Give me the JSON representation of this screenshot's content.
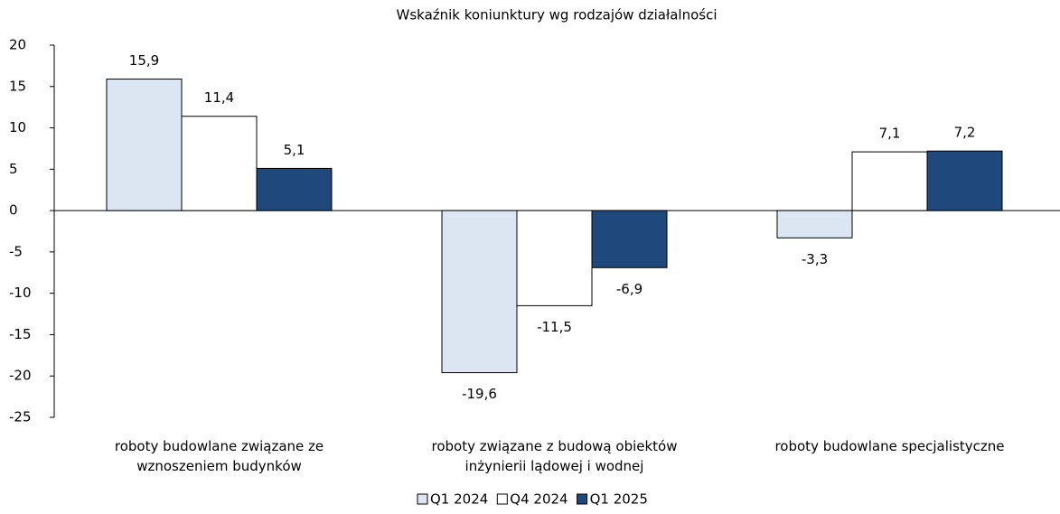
{
  "chart_data": {
    "type": "bar",
    "title": "Wskaźnik koniunktury wg rodzajów działalności",
    "categories": [
      "roboty budowlane związane ze wznoszeniem budynków",
      "roboty związane z budową obiektów inżynierii lądowej i wodnej",
      "roboty budowlane specjalistyczne"
    ],
    "series": [
      {
        "name": "Q1 2024",
        "color": "#dce6f2",
        "values": [
          15.9,
          -19.6,
          -3.3
        ],
        "value_labels": [
          "15,9",
          "-19,6",
          "-3,3"
        ]
      },
      {
        "name": "Q4 2024",
        "color": "#ffffff",
        "values": [
          11.4,
          -11.5,
          7.1
        ],
        "value_labels": [
          "11,4",
          "-11,5",
          "7,1"
        ]
      },
      {
        "name": "Q1 2025",
        "color": "#1f497d",
        "values": [
          5.1,
          -6.9,
          7.2
        ],
        "value_labels": [
          "5,1",
          "-6,9",
          "7,2"
        ]
      }
    ],
    "ylim": [
      -25,
      20
    ],
    "yticks": [
      -25,
      -20,
      -15,
      -10,
      -5,
      0,
      5,
      10,
      15,
      20
    ],
    "grid": false,
    "legend": "bottom"
  }
}
